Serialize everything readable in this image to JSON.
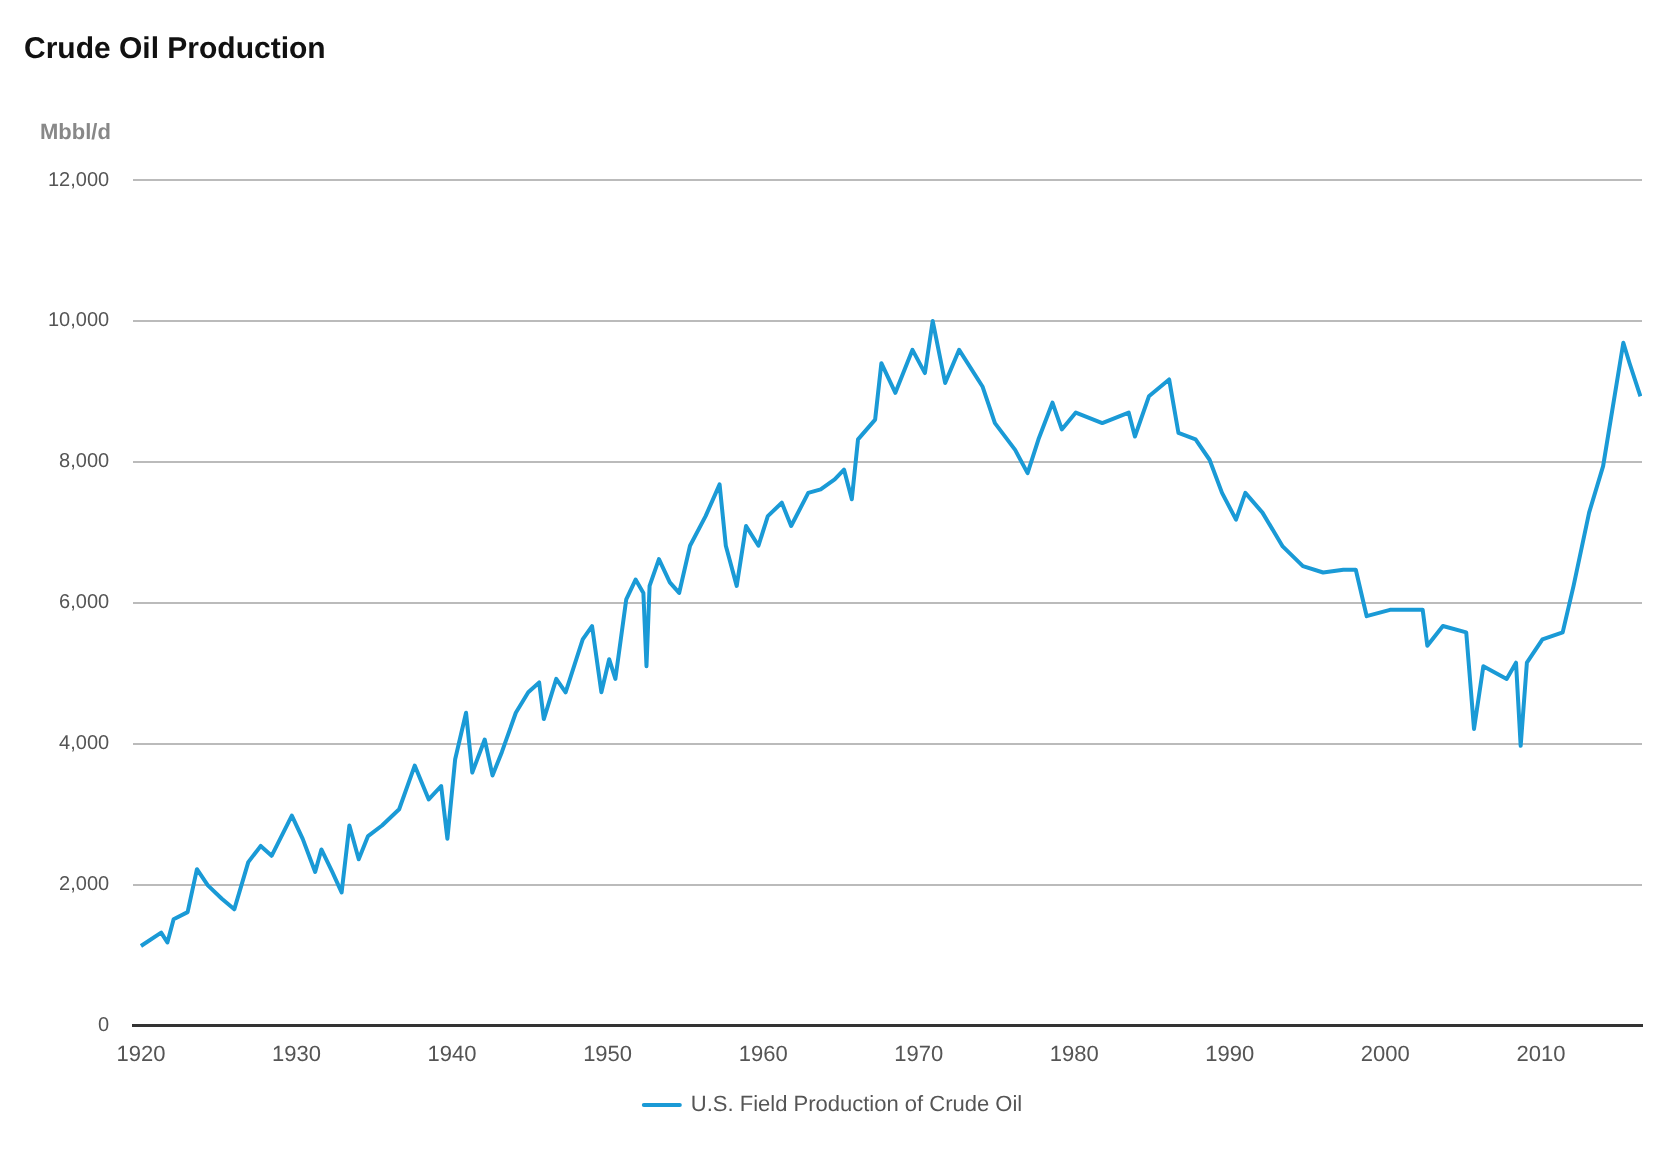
{
  "chart_data": {
    "type": "line",
    "title": "Crude Oil Production",
    "ylabel": "Mbbl/d",
    "xlim": [
      1919.5,
      2016.5
    ],
    "xticks": [
      1920,
      1930,
      1940,
      1950,
      1960,
      1970,
      1980,
      1990,
      2000,
      2010
    ],
    "ylim": [
      0,
      12000
    ],
    "yticks": [
      {
        "value": 0,
        "label": "0"
      },
      {
        "value": 2000,
        "label": "2,000"
      },
      {
        "value": 4000,
        "label": "4,000"
      },
      {
        "value": 6000,
        "label": "6,000"
      },
      {
        "value": 8000,
        "label": "8,000"
      },
      {
        "value": 10000,
        "label": "10,000"
      },
      {
        "value": 12000,
        "label": "12,000"
      }
    ],
    "grid": "y",
    "legend": "bottom",
    "marker": "none",
    "line_style": "solid",
    "series": [
      {
        "name": "U.S. Field Production of Crude Oil",
        "color": "#1a9ad6",
        "x": [
          1920.0,
          1921.3,
          1921.7,
          1922.1,
          1923,
          1923.6,
          1924.3,
          1925.2,
          1926,
          1926.9,
          1927.7,
          1928.4,
          1929.7,
          1930.4,
          1931.2,
          1931.6,
          1932.3,
          1932.9,
          1933.4,
          1934,
          1934.6,
          1935.5,
          1936.6,
          1937.6,
          1938.5,
          1939.3,
          1939.7,
          1940.2,
          1940.9,
          1941.3,
          1942.1,
          1942.6,
          1943.2,
          1944.1,
          1944.9,
          1945.6,
          1945.9,
          1946.7,
          1947.3,
          1948.4,
          1949,
          1949.6,
          1950.1,
          1950.5,
          1951.2,
          1951.8,
          1952.3,
          1952.5,
          1952.7,
          1953.3,
          1954,
          1954.6,
          1955.3,
          1956.3,
          1957.2,
          1957.6,
          1958.3,
          1958.9,
          1959.7,
          1960.3,
          1961.2,
          1961.8,
          1962.9,
          1963.7,
          1964.6,
          1965.2,
          1965.7,
          1966.1,
          1967.2,
          1967.6,
          1968.5,
          1969.6,
          1970.4,
          1970.9,
          1971.7,
          1972.6,
          1974.1,
          1974.9,
          1976.2,
          1977,
          1977.7,
          1978.6,
          1979.2,
          1980.1,
          1981.8,
          1983.5,
          1983.9,
          1984.8,
          1986.1,
          1986.7,
          1987.8,
          1988.7,
          1989.5,
          1990.4,
          1991,
          1992.1,
          1993.4,
          1994.7,
          1996,
          1997.3,
          1998.1,
          1998.8,
          2000.3,
          2002.4,
          2002.7,
          2003.7,
          2005.2,
          2005.7,
          2006.3,
          2007.8,
          2008.4,
          2008.7,
          2009.1,
          2010.1,
          2011.4,
          2012.1,
          2013.1,
          2014,
          2015.3,
          2015.7,
          2016.4
        ],
        "values": [
          1130,
          1320,
          1180,
          1510,
          1610,
          2220,
          1990,
          1800,
          1650,
          2320,
          2550,
          2410,
          2980,
          2650,
          2180,
          2500,
          2180,
          1890,
          2840,
          2360,
          2690,
          2840,
          3070,
          3690,
          3210,
          3400,
          2650,
          3780,
          4440,
          3590,
          4060,
          3550,
          3880,
          4440,
          4730,
          4870,
          4350,
          4920,
          4730,
          5480,
          5670,
          4730,
          5200,
          4920,
          6050,
          6330,
          6140,
          5100,
          6240,
          6620,
          6290,
          6140,
          6810,
          7230,
          7680,
          6810,
          6240,
          7090,
          6810,
          7230,
          7420,
          7090,
          7560,
          7610,
          7750,
          7890,
          7470,
          8320,
          8600,
          9400,
          8980,
          9590,
          9260,
          10000,
          9120,
          9590,
          9070,
          8550,
          8170,
          7840,
          8320,
          8840,
          8460,
          8700,
          8550,
          8700,
          8360,
          8930,
          9170,
          8410,
          8320,
          8030,
          7560,
          7180,
          7560,
          7280,
          6800,
          6520,
          6430,
          6470,
          6470,
          5810,
          5900,
          5900,
          5390,
          5670,
          5580,
          4210,
          5100,
          4920,
          5150,
          3970,
          5150,
          5480,
          5580,
          6240,
          7280,
          7940,
          9690,
          9400,
          8930
        ]
      }
    ]
  }
}
